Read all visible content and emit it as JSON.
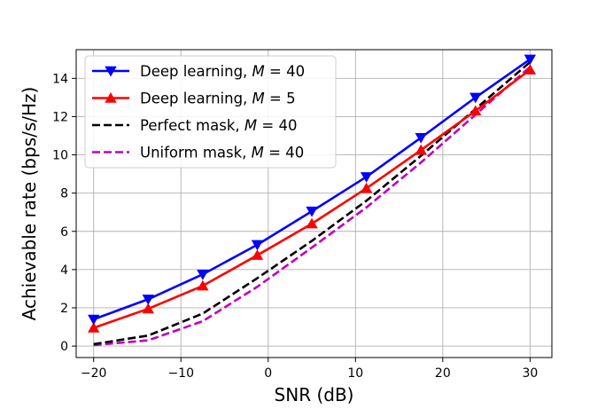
{
  "chart_data": {
    "type": "line",
    "xlabel": "SNR (dB)",
    "ylabel": "Achievable rate (bps/s/Hz)",
    "xlim": [
      -22,
      32.5
    ],
    "ylim": [
      -0.6,
      15.5
    ],
    "x_ticks": [
      -20,
      -10,
      0,
      10,
      20,
      30
    ],
    "x_tick_labels": [
      "−20",
      "−10",
      "0",
      "10",
      "20",
      "30"
    ],
    "y_ticks": [
      0,
      2,
      4,
      6,
      8,
      10,
      12,
      14
    ],
    "y_tick_labels": [
      "0",
      "2",
      "4",
      "6",
      "8",
      "10",
      "12",
      "14"
    ],
    "grid": true,
    "legend_position": "top-left",
    "series": [
      {
        "name_prefix": "Deep learning, ",
        "name_math": "M",
        "name_suffix": " = 40",
        "color": "#0000ff",
        "style": "solid",
        "marker": "triangle-down",
        "x": [
          -20,
          -13.75,
          -7.5,
          -1.25,
          5,
          11.25,
          17.5,
          23.75,
          30
        ],
        "y": [
          1.4,
          2.45,
          3.75,
          5.3,
          7.05,
          8.85,
          10.9,
          13.0,
          15.0
        ]
      },
      {
        "name_prefix": "Deep learning, ",
        "name_math": "M",
        "name_suffix": " = 5",
        "color": "#ff0000",
        "style": "solid",
        "marker": "triangle-up",
        "x": [
          -20,
          -13.75,
          -7.5,
          -1.25,
          5,
          11.25,
          17.5,
          23.75,
          30
        ],
        "y": [
          0.95,
          1.95,
          3.15,
          4.75,
          6.4,
          8.25,
          10.25,
          12.3,
          14.45
        ]
      },
      {
        "name_prefix": "Perfect mask, ",
        "name_math": "M",
        "name_suffix": " = 40",
        "color": "#000000",
        "style": "dashed",
        "marker": "none",
        "x": [
          -20,
          -13.75,
          -7.5,
          -1.25,
          5,
          11.25,
          17.5,
          23.75,
          30
        ],
        "y": [
          0.1,
          0.55,
          1.7,
          3.55,
          5.5,
          7.6,
          9.95,
          12.4,
          14.85
        ]
      },
      {
        "name_prefix": "Uniform mask, ",
        "name_math": "M",
        "name_suffix": " = 40",
        "color": "#bf00bf",
        "style": "dashed",
        "marker": "none",
        "x": [
          -20,
          -13.75,
          -7.5,
          -1.25,
          5,
          11.25,
          17.5,
          23.75,
          30
        ],
        "y": [
          0.05,
          0.3,
          1.3,
          3.1,
          5.15,
          7.25,
          9.6,
          12.1,
          14.6
        ]
      }
    ]
  }
}
